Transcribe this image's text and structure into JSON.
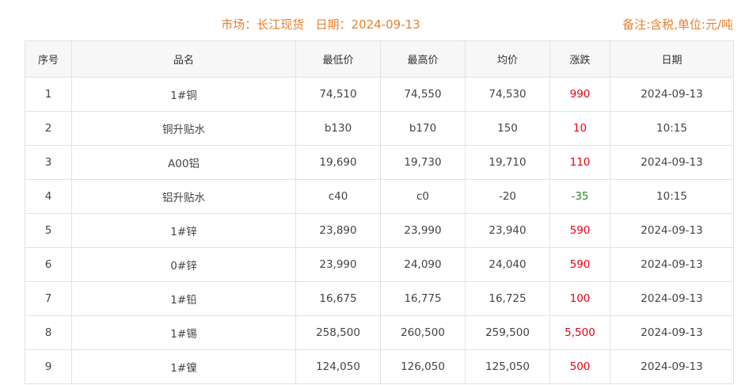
{
  "header": {
    "title": "市场：长江现货   日期：2024-09-13",
    "note": "备注:含税,单位:元/吨"
  },
  "colors": {
    "accent": "#e8802e",
    "up": "#e60012",
    "down": "#2a8a2a"
  },
  "table": {
    "columns": [
      "序号",
      "品名",
      "最低价",
      "最高价",
      "均价",
      "涨跌",
      "日期"
    ],
    "rows": [
      [
        "1",
        "1#铜",
        "74,510",
        "74,550",
        "74,530",
        "990",
        "2024-09-13"
      ],
      [
        "2",
        "铜升贴水",
        "b130",
        "b170",
        "150",
        "10",
        "10:15"
      ],
      [
        "3",
        "A00铝",
        "19,690",
        "19,730",
        "19,710",
        "110",
        "2024-09-13"
      ],
      [
        "4",
        "铝升贴水",
        "c40",
        "c0",
        "-20",
        "-35",
        "10:15"
      ],
      [
        "5",
        "1#锌",
        "23,890",
        "23,990",
        "23,940",
        "590",
        "2024-09-13"
      ],
      [
        "6",
        "0#锌",
        "23,990",
        "24,090",
        "24,040",
        "590",
        "2024-09-13"
      ],
      [
        "7",
        "1#铅",
        "16,675",
        "16,775",
        "16,725",
        "100",
        "2024-09-13"
      ],
      [
        "8",
        "1#锡",
        "258,500",
        "260,500",
        "259,500",
        "5,500",
        "2024-09-13"
      ],
      [
        "9",
        "1#镍",
        "124,050",
        "126,050",
        "125,050",
        "500",
        "2024-09-13"
      ]
    ]
  }
}
